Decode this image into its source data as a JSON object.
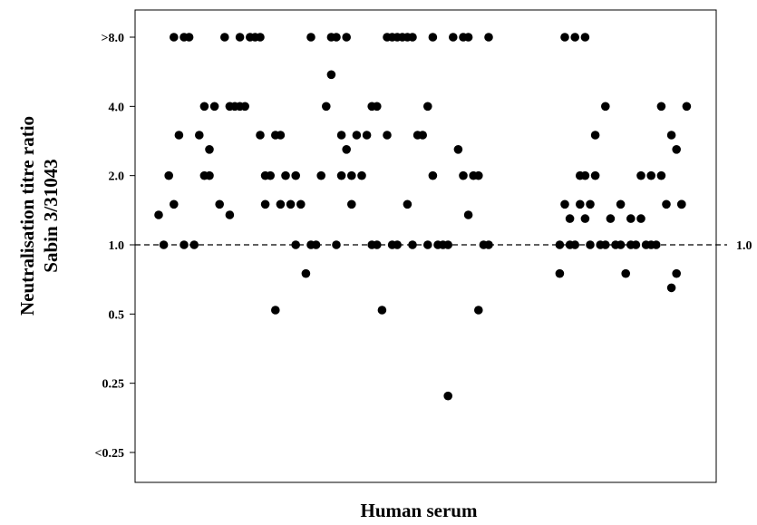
{
  "chart_data": {
    "type": "scatter",
    "title": "",
    "xlabel": "Human serum",
    "ylabel": [
      "Neutralisation titre ratio",
      "Sabin 3/31043"
    ],
    "y_scale": "log2",
    "ylim": [
      0.18,
      11.5
    ],
    "y_ticks": [
      {
        "value": 8.0,
        "label": ">8.0"
      },
      {
        "value": 4.0,
        "label": "4.0"
      },
      {
        "value": 2.0,
        "label": "2.0"
      },
      {
        "value": 1.0,
        "label": "1.0"
      },
      {
        "value": 0.5,
        "label": "0.5"
      },
      {
        "value": 0.25,
        "label": "0.25"
      },
      {
        "value": 0.2,
        "label": "<0.25"
      }
    ],
    "reference_line": {
      "value": 1.0,
      "label": "1.0",
      "style": "dashed"
    },
    "grid": false,
    "series": [
      {
        "marker": "filled-circle",
        "color": "#000000",
        "points": [
          {
            "x": 1,
            "y": 1.35
          },
          {
            "x": 2,
            "y": 1.0
          },
          {
            "x": 3,
            "y": 2.0
          },
          {
            "x": 4,
            "y": 1.5
          },
          {
            "x": 4,
            "y": 8.0
          },
          {
            "x": 5,
            "y": 3.0
          },
          {
            "x": 6,
            "y": 1.0
          },
          {
            "x": 6,
            "y": 8.0
          },
          {
            "x": 7,
            "y": 8.0
          },
          {
            "x": 8,
            "y": 1.0
          },
          {
            "x": 9,
            "y": 3.0
          },
          {
            "x": 10,
            "y": 4.0
          },
          {
            "x": 10,
            "y": 2.0
          },
          {
            "x": 11,
            "y": 2.6
          },
          {
            "x": 11,
            "y": 2.0
          },
          {
            "x": 12,
            "y": 4.0
          },
          {
            "x": 13,
            "y": 1.5
          },
          {
            "x": 14,
            "y": 8.0
          },
          {
            "x": 15,
            "y": 1.35
          },
          {
            "x": 15,
            "y": 4.0
          },
          {
            "x": 16,
            "y": 4.0
          },
          {
            "x": 17,
            "y": 8.0
          },
          {
            "x": 17,
            "y": 4.0
          },
          {
            "x": 18,
            "y": 4.0
          },
          {
            "x": 19,
            "y": 8.0
          },
          {
            "x": 20,
            "y": 8.0
          },
          {
            "x": 21,
            "y": 8.0
          },
          {
            "x": 21,
            "y": 3.0
          },
          {
            "x": 22,
            "y": 2.0
          },
          {
            "x": 22,
            "y": 1.5
          },
          {
            "x": 23,
            "y": 2.0
          },
          {
            "x": 24,
            "y": 0.52
          },
          {
            "x": 24,
            "y": 3.0
          },
          {
            "x": 25,
            "y": 3.0
          },
          {
            "x": 25,
            "y": 1.5
          },
          {
            "x": 26,
            "y": 2.0
          },
          {
            "x": 27,
            "y": 1.5
          },
          {
            "x": 28,
            "y": 1.0
          },
          {
            "x": 28,
            "y": 2.0
          },
          {
            "x": 29,
            "y": 1.5
          },
          {
            "x": 30,
            "y": 0.75
          },
          {
            "x": 31,
            "y": 8.0
          },
          {
            "x": 31,
            "y": 1.0
          },
          {
            "x": 32,
            "y": 1.0
          },
          {
            "x": 33,
            "y": 2.0
          },
          {
            "x": 34,
            "y": 4.0
          },
          {
            "x": 35,
            "y": 5.5
          },
          {
            "x": 35,
            "y": 8.0
          },
          {
            "x": 36,
            "y": 1.0
          },
          {
            "x": 36,
            "y": 8.0
          },
          {
            "x": 37,
            "y": 3.0
          },
          {
            "x": 37,
            "y": 2.0
          },
          {
            "x": 38,
            "y": 2.6
          },
          {
            "x": 38,
            "y": 8.0
          },
          {
            "x": 39,
            "y": 1.5
          },
          {
            "x": 39,
            "y": 2.0
          },
          {
            "x": 40,
            "y": 3.0
          },
          {
            "x": 41,
            "y": 2.0
          },
          {
            "x": 42,
            "y": 3.0
          },
          {
            "x": 43,
            "y": 4.0
          },
          {
            "x": 43,
            "y": 1.0
          },
          {
            "x": 44,
            "y": 4.0
          },
          {
            "x": 44,
            "y": 1.0
          },
          {
            "x": 45,
            "y": 0.52
          },
          {
            "x": 46,
            "y": 3.0
          },
          {
            "x": 46,
            "y": 8.0
          },
          {
            "x": 47,
            "y": 8.0
          },
          {
            "x": 47,
            "y": 1.0
          },
          {
            "x": 48,
            "y": 1.0
          },
          {
            "x": 48,
            "y": 8.0
          },
          {
            "x": 49,
            "y": 8.0
          },
          {
            "x": 50,
            "y": 8.0
          },
          {
            "x": 50,
            "y": 1.5
          },
          {
            "x": 51,
            "y": 1.0
          },
          {
            "x": 51,
            "y": 8.0
          },
          {
            "x": 52,
            "y": 3.0
          },
          {
            "x": 53,
            "y": 3.0
          },
          {
            "x": 54,
            "y": 4.0
          },
          {
            "x": 54,
            "y": 1.0
          },
          {
            "x": 55,
            "y": 8.0
          },
          {
            "x": 55,
            "y": 2.0
          },
          {
            "x": 56,
            "y": 1.0
          },
          {
            "x": 57,
            "y": 1.0
          },
          {
            "x": 58,
            "y": 1.0
          },
          {
            "x": 58,
            "y": 0.22
          },
          {
            "x": 59,
            "y": 8.0
          },
          {
            "x": 60,
            "y": 2.6
          },
          {
            "x": 61,
            "y": 8.0
          },
          {
            "x": 61,
            "y": 2.0
          },
          {
            "x": 62,
            "y": 8.0
          },
          {
            "x": 62,
            "y": 1.35
          },
          {
            "x": 63,
            "y": 2.0
          },
          {
            "x": 64,
            "y": 2.0
          },
          {
            "x": 64,
            "y": 0.52
          },
          {
            "x": 65,
            "y": 1.0
          },
          {
            "x": 66,
            "y": 8.0
          },
          {
            "x": 66,
            "y": 1.0
          },
          {
            "x": 80,
            "y": 0.75
          },
          {
            "x": 80,
            "y": 1.0
          },
          {
            "x": 81,
            "y": 1.5
          },
          {
            "x": 81,
            "y": 8.0
          },
          {
            "x": 82,
            "y": 1.0
          },
          {
            "x": 82,
            "y": 1.3
          },
          {
            "x": 83,
            "y": 8.0
          },
          {
            "x": 83,
            "y": 1.0
          },
          {
            "x": 84,
            "y": 1.5
          },
          {
            "x": 84,
            "y": 2.0
          },
          {
            "x": 85,
            "y": 8.0
          },
          {
            "x": 85,
            "y": 2.0
          },
          {
            "x": 85,
            "y": 1.3
          },
          {
            "x": 86,
            "y": 1.0
          },
          {
            "x": 86,
            "y": 1.5
          },
          {
            "x": 87,
            "y": 3.0
          },
          {
            "x": 87,
            "y": 2.0
          },
          {
            "x": 88,
            "y": 1.0
          },
          {
            "x": 89,
            "y": 4.0
          },
          {
            "x": 89,
            "y": 1.0
          },
          {
            "x": 90,
            "y": 1.3
          },
          {
            "x": 91,
            "y": 1.0
          },
          {
            "x": 92,
            "y": 1.5
          },
          {
            "x": 92,
            "y": 1.0
          },
          {
            "x": 93,
            "y": 0.75
          },
          {
            "x": 94,
            "y": 1.0
          },
          {
            "x": 94,
            "y": 1.3
          },
          {
            "x": 95,
            "y": 1.0
          },
          {
            "x": 96,
            "y": 1.3
          },
          {
            "x": 96,
            "y": 2.0
          },
          {
            "x": 97,
            "y": 1.0
          },
          {
            "x": 98,
            "y": 1.0
          },
          {
            "x": 98,
            "y": 2.0
          },
          {
            "x": 99,
            "y": 1.0
          },
          {
            "x": 100,
            "y": 4.0
          },
          {
            "x": 100,
            "y": 2.0
          },
          {
            "x": 101,
            "y": 1.5
          },
          {
            "x": 102,
            "y": 3.0
          },
          {
            "x": 102,
            "y": 0.65
          },
          {
            "x": 103,
            "y": 2.6
          },
          {
            "x": 103,
            "y": 0.75
          },
          {
            "x": 104,
            "y": 1.5
          },
          {
            "x": 104,
            "y": 1.5
          },
          {
            "x": 105,
            "y": 4.0
          }
        ]
      }
    ]
  }
}
